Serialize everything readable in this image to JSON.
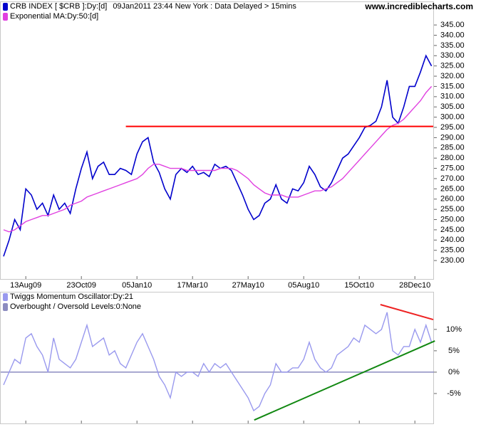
{
  "chart_data": [
    {
      "type": "line",
      "watermark": "www.incrediblecharts.com",
      "subtitle": "09Jan2011 23:44 New York : Data Delayed > 15mins",
      "categories": [
        null,
        null,
        null,
        null,
        "13Aug09",
        null,
        null,
        null,
        null,
        null,
        null,
        null,
        null,
        null,
        "23Oct09",
        null,
        null,
        null,
        null,
        null,
        null,
        null,
        null,
        null,
        "05Jan10",
        null,
        null,
        null,
        null,
        null,
        null,
        null,
        null,
        null,
        "17Mar10",
        null,
        null,
        null,
        null,
        null,
        null,
        null,
        null,
        null,
        "27May10",
        null,
        null,
        null,
        null,
        null,
        null,
        null,
        null,
        null,
        "05Aug10",
        null,
        null,
        null,
        null,
        null,
        null,
        null,
        null,
        null,
        "15Oct10",
        null,
        null,
        null,
        null,
        null,
        null,
        null,
        null,
        null,
        "28Dec10",
        null,
        null,
        null
      ],
      "series": [
        {
          "name": "CRB INDEX [ $CRB ]:Dy:[d]",
          "color": "#0000cc",
          "values": [
            232,
            240,
            250,
            245,
            265,
            262,
            255,
            258,
            252,
            262,
            255,
            258,
            253,
            265,
            275,
            283,
            270,
            276,
            278,
            272,
            272,
            275,
            274,
            272,
            282,
            288,
            290,
            278,
            273,
            265,
            260,
            272,
            275,
            273,
            276,
            272,
            273,
            271,
            277,
            275,
            276,
            274,
            268,
            262,
            255,
            250,
            252,
            258,
            260,
            267,
            260,
            258,
            265,
            264,
            268,
            276,
            272,
            266,
            264,
            268,
            274,
            280,
            282,
            286,
            290,
            295,
            296,
            298,
            305,
            318,
            300,
            297,
            305,
            315,
            315,
            322,
            330,
            325
          ]
        },
        {
          "name": "Exponential MA:Dy:50:[d]",
          "color": "#e040e0",
          "values": [
            245,
            244,
            245,
            247,
            249,
            250,
            251,
            252,
            252,
            253,
            254,
            255,
            257,
            258,
            259,
            261,
            262,
            263,
            264,
            265,
            266,
            267,
            268,
            269,
            270,
            272,
            275,
            277,
            277,
            276,
            275,
            275,
            275,
            274,
            274,
            274,
            274,
            274,
            274,
            275,
            275,
            275,
            274,
            272,
            270,
            267,
            265,
            263,
            262,
            262,
            262,
            261,
            261,
            261,
            262,
            263,
            264,
            264,
            265,
            266,
            268,
            270,
            273,
            276,
            279,
            282,
            285,
            288,
            291,
            294,
            296,
            297,
            299,
            302,
            305,
            308,
            312,
            315
          ]
        }
      ],
      "trendlines": [
        {
          "color": "#ff0000",
          "x": [
            22,
            77.3
          ],
          "y": [
            295.5,
            295.5
          ]
        }
      ],
      "ylim": [
        221,
        356.5
      ],
      "yticks": [
        {
          "value": 230,
          "label": "230.00"
        },
        {
          "value": 235,
          "label": "235.00"
        },
        {
          "value": 240,
          "label": "240.00"
        },
        {
          "value": 245,
          "label": "245.00"
        },
        {
          "value": 250,
          "label": "250.00"
        },
        {
          "value": 255,
          "label": "255.00"
        },
        {
          "value": 260,
          "label": "260.00"
        },
        {
          "value": 265,
          "label": "265.00"
        },
        {
          "value": 270,
          "label": "270.00"
        },
        {
          "value": 275,
          "label": "275.00"
        },
        {
          "value": 280,
          "label": "280.00"
        },
        {
          "value": 285,
          "label": "285.00"
        },
        {
          "value": 290,
          "label": "290.00"
        },
        {
          "value": 295,
          "label": "295.00"
        },
        {
          "value": 300,
          "label": "300.00"
        },
        {
          "value": 305,
          "label": "305.00"
        },
        {
          "value": 310,
          "label": "310.00"
        },
        {
          "value": 315,
          "label": "315.00"
        },
        {
          "value": 320,
          "label": "320.00"
        },
        {
          "value": 325,
          "label": "325.00"
        },
        {
          "value": 330,
          "label": "330.00"
        },
        {
          "value": 335,
          "label": "335.00"
        },
        {
          "value": 340,
          "label": "340.00"
        },
        {
          "value": 345,
          "label": "345.00"
        }
      ]
    },
    {
      "type": "line",
      "series": [
        {
          "name": "Twiggs Momentum Oscillator:Dy:21",
          "color": "#9999ee",
          "values": [
            -3,
            0,
            3,
            2,
            8,
            9,
            6,
            4,
            0,
            8,
            3,
            2,
            1,
            3,
            7,
            11,
            6,
            7,
            8,
            4,
            5,
            2,
            1,
            4,
            7,
            9,
            6,
            3,
            -1,
            -3,
            -6,
            0,
            -1,
            0,
            0,
            -1,
            2,
            0,
            2,
            1,
            2,
            0,
            -2,
            -4,
            -6,
            -9,
            -8,
            -5,
            -3,
            2,
            0,
            0,
            1,
            1,
            3,
            7,
            3,
            1,
            0,
            1,
            4,
            5,
            6,
            8,
            7,
            11,
            10,
            9,
            10,
            14,
            5,
            4,
            6,
            6,
            10,
            7,
            11,
            7
          ]
        }
      ],
      "level": {
        "name": "Overbought / Oversold Levels:0:None",
        "value": 0,
        "color": "#8c8cc0"
      },
      "trendlines": [
        {
          "color": "#ee2222",
          "x": [
            67.8,
            77.3
          ],
          "y": [
            15.8,
            12.3
          ]
        },
        {
          "color": "#118811",
          "x": [
            45.1,
            77.6
          ],
          "y": [
            -11.2,
            7.3
          ]
        }
      ],
      "ylim": [
        -12,
        18.8
      ],
      "yticks": [
        {
          "value": -5,
          "label": "-5%"
        },
        {
          "value": 0,
          "label": "0%"
        },
        {
          "value": 5,
          "label": "5%"
        },
        {
          "value": 10,
          "label": "10%"
        }
      ]
    }
  ]
}
